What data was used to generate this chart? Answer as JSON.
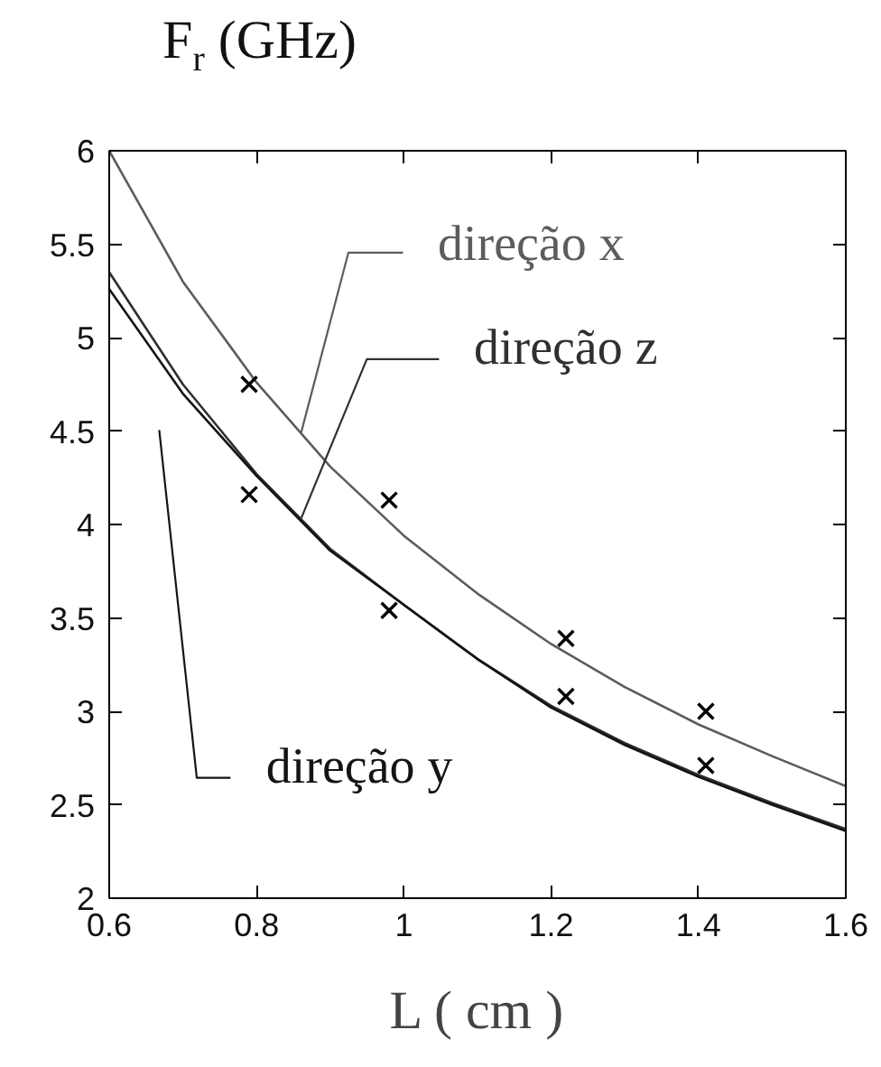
{
  "chart_data": {
    "type": "line",
    "ylabel": "F$_{r}$ (GHz)",
    "xlabel": "L ( cm )",
    "xlim": [
      0.6,
      1.6
    ],
    "ylim": [
      2,
      6
    ],
    "xticks": [
      0.6,
      0.8,
      1,
      1.2,
      1.4,
      1.6
    ],
    "yticks": [
      2,
      2.5,
      3,
      3.5,
      4,
      4.5,
      5,
      5.5,
      6
    ],
    "grid": false,
    "x": [
      0.6,
      0.7,
      0.8,
      0.9,
      1.0,
      1.1,
      1.2,
      1.3,
      1.4,
      1.5,
      1.6
    ],
    "series": [
      {
        "name": "direção x",
        "color": "#5c5c5c",
        "values": [
          6.0,
          5.3,
          4.76,
          4.31,
          3.94,
          3.63,
          3.36,
          3.13,
          2.93,
          2.76,
          2.6
        ]
      },
      {
        "name": "direção z",
        "color": "#303030",
        "values": [
          5.35,
          4.75,
          4.27,
          3.87,
          3.57,
          3.28,
          3.03,
          2.83,
          2.66,
          2.51,
          2.37
        ]
      },
      {
        "name": "direção y",
        "color": "#141414",
        "values": [
          5.26,
          4.7,
          4.26,
          3.86,
          3.57,
          3.28,
          3.02,
          2.82,
          2.65,
          2.5,
          2.36
        ]
      },
      {
        "type": "scatter",
        "marker": "cross",
        "color": "#000000",
        "x": [
          0.79,
          0.98,
          1.22,
          1.41
        ],
        "values": [
          4.75,
          4.13,
          3.39,
          3.0
        ]
      },
      {
        "type": "scatter",
        "marker": "cross",
        "color": "#000000",
        "x": [
          0.79,
          0.98,
          1.22,
          1.41
        ],
        "values": [
          4.16,
          3.54,
          3.08,
          2.71
        ]
      }
    ]
  }
}
